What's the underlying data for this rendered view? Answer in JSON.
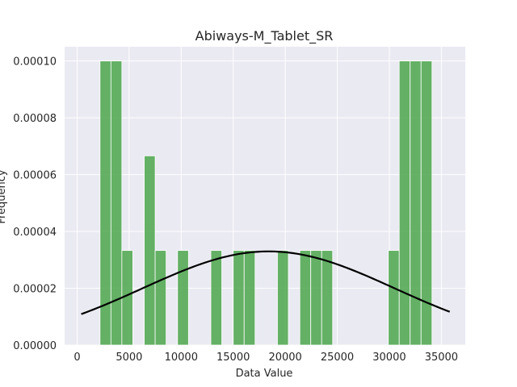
{
  "chart_data": {
    "type": "bar",
    "title": "Abiways-M_Tablet_SR",
    "xlabel": "Data Value",
    "ylabel": "Frequency",
    "xlim": [
      -1200,
      37300
    ],
    "ylim": [
      0,
      0.000105
    ],
    "x_ticks": [
      0,
      5000,
      10000,
      15000,
      20000,
      25000,
      30000,
      35000
    ],
    "x_tick_labels": [
      "0",
      "5000",
      "10000",
      "15000",
      "20000",
      "25000",
      "30000",
      "35000"
    ],
    "y_ticks": [
      0,
      2e-05,
      4e-05,
      6e-05,
      8e-05,
      0.0001
    ],
    "y_tick_labels": [
      "0.00000",
      "0.00002",
      "0.00004",
      "0.00006",
      "0.00008",
      "0.00010"
    ],
    "grid": true,
    "bar_color": "#4ca64c",
    "curve_color": "#000000",
    "background_color": "#eaeaf2",
    "bins": [
      {
        "x0": 2200,
        "x1": 3250,
        "value": 0.0001
      },
      {
        "x0": 3250,
        "x1": 4300,
        "value": 0.0001
      },
      {
        "x0": 4300,
        "x1": 5350,
        "value": 3.33e-05
      },
      {
        "x0": 6450,
        "x1": 7500,
        "value": 6.66e-05
      },
      {
        "x0": 7500,
        "x1": 8550,
        "value": 3.33e-05
      },
      {
        "x0": 9650,
        "x1": 10700,
        "value": 3.33e-05
      },
      {
        "x0": 12850,
        "x1": 13900,
        "value": 3.33e-05
      },
      {
        "x0": 15000,
        "x1": 16050,
        "value": 3.33e-05
      },
      {
        "x0": 16050,
        "x1": 17100,
        "value": 3.33e-05
      },
      {
        "x0": 19250,
        "x1": 20300,
        "value": 3.33e-05
      },
      {
        "x0": 21400,
        "x1": 22450,
        "value": 3.33e-05
      },
      {
        "x0": 22450,
        "x1": 23500,
        "value": 3.33e-05
      },
      {
        "x0": 23500,
        "x1": 24550,
        "value": 3.33e-05
      },
      {
        "x0": 29900,
        "x1": 30950,
        "value": 3.33e-05
      },
      {
        "x0": 30950,
        "x1": 32000,
        "value": 0.0001
      },
      {
        "x0": 32000,
        "x1": 33050,
        "value": 0.0001
      },
      {
        "x0": 33050,
        "x1": 34100,
        "value": 0.0001
      }
    ],
    "normal_curve": {
      "mean": 18400,
      "std": 12100,
      "x_range": [
        400,
        35800
      ]
    }
  }
}
